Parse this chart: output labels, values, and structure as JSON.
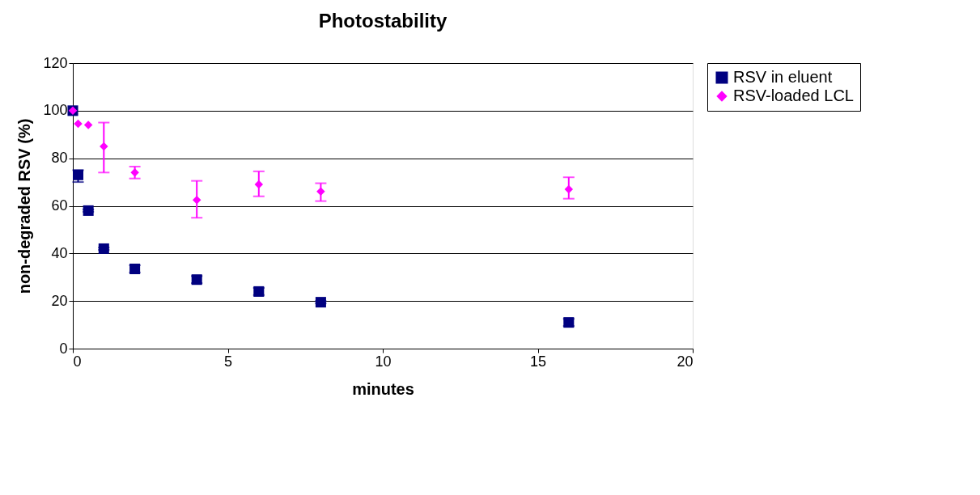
{
  "chart_data": {
    "type": "scatter",
    "title": "Photostability",
    "xlabel": "minutes",
    "ylabel": "non-degraded RSV (%)",
    "x": [
      0,
      0.17,
      0.5,
      1,
      2,
      4,
      6,
      8,
      16
    ],
    "series": [
      {
        "name": "RSV in eluent",
        "color": "#000080",
        "marker": "square",
        "values": [
          100,
          73,
          58,
          42,
          33.5,
          29,
          24,
          19.5,
          11
        ],
        "errors": [
          null,
          [
            70,
            75
          ],
          0.5,
          0.5,
          1.5,
          1.5,
          1.5,
          0.5,
          1.5
        ]
      },
      {
        "name": "RSV-loaded LCL",
        "color": "#ff00ff",
        "marker": "diamond",
        "values": [
          100,
          94.5,
          94,
          85,
          74,
          62.5,
          69,
          66,
          67
        ],
        "errors": [
          null,
          null,
          null,
          [
            74,
            95
          ],
          [
            71.5,
            76.5
          ],
          [
            55,
            70.5
          ],
          [
            64,
            74.5
          ],
          [
            62,
            69.5
          ],
          [
            63,
            72
          ]
        ]
      }
    ],
    "xlim": [
      0,
      20
    ],
    "xticks": [
      0,
      5,
      10,
      15,
      20
    ],
    "ylim": [
      0,
      120
    ],
    "yticks": [
      0,
      20,
      40,
      60,
      80,
      100,
      120
    ],
    "grid": "y",
    "legend": "right"
  }
}
